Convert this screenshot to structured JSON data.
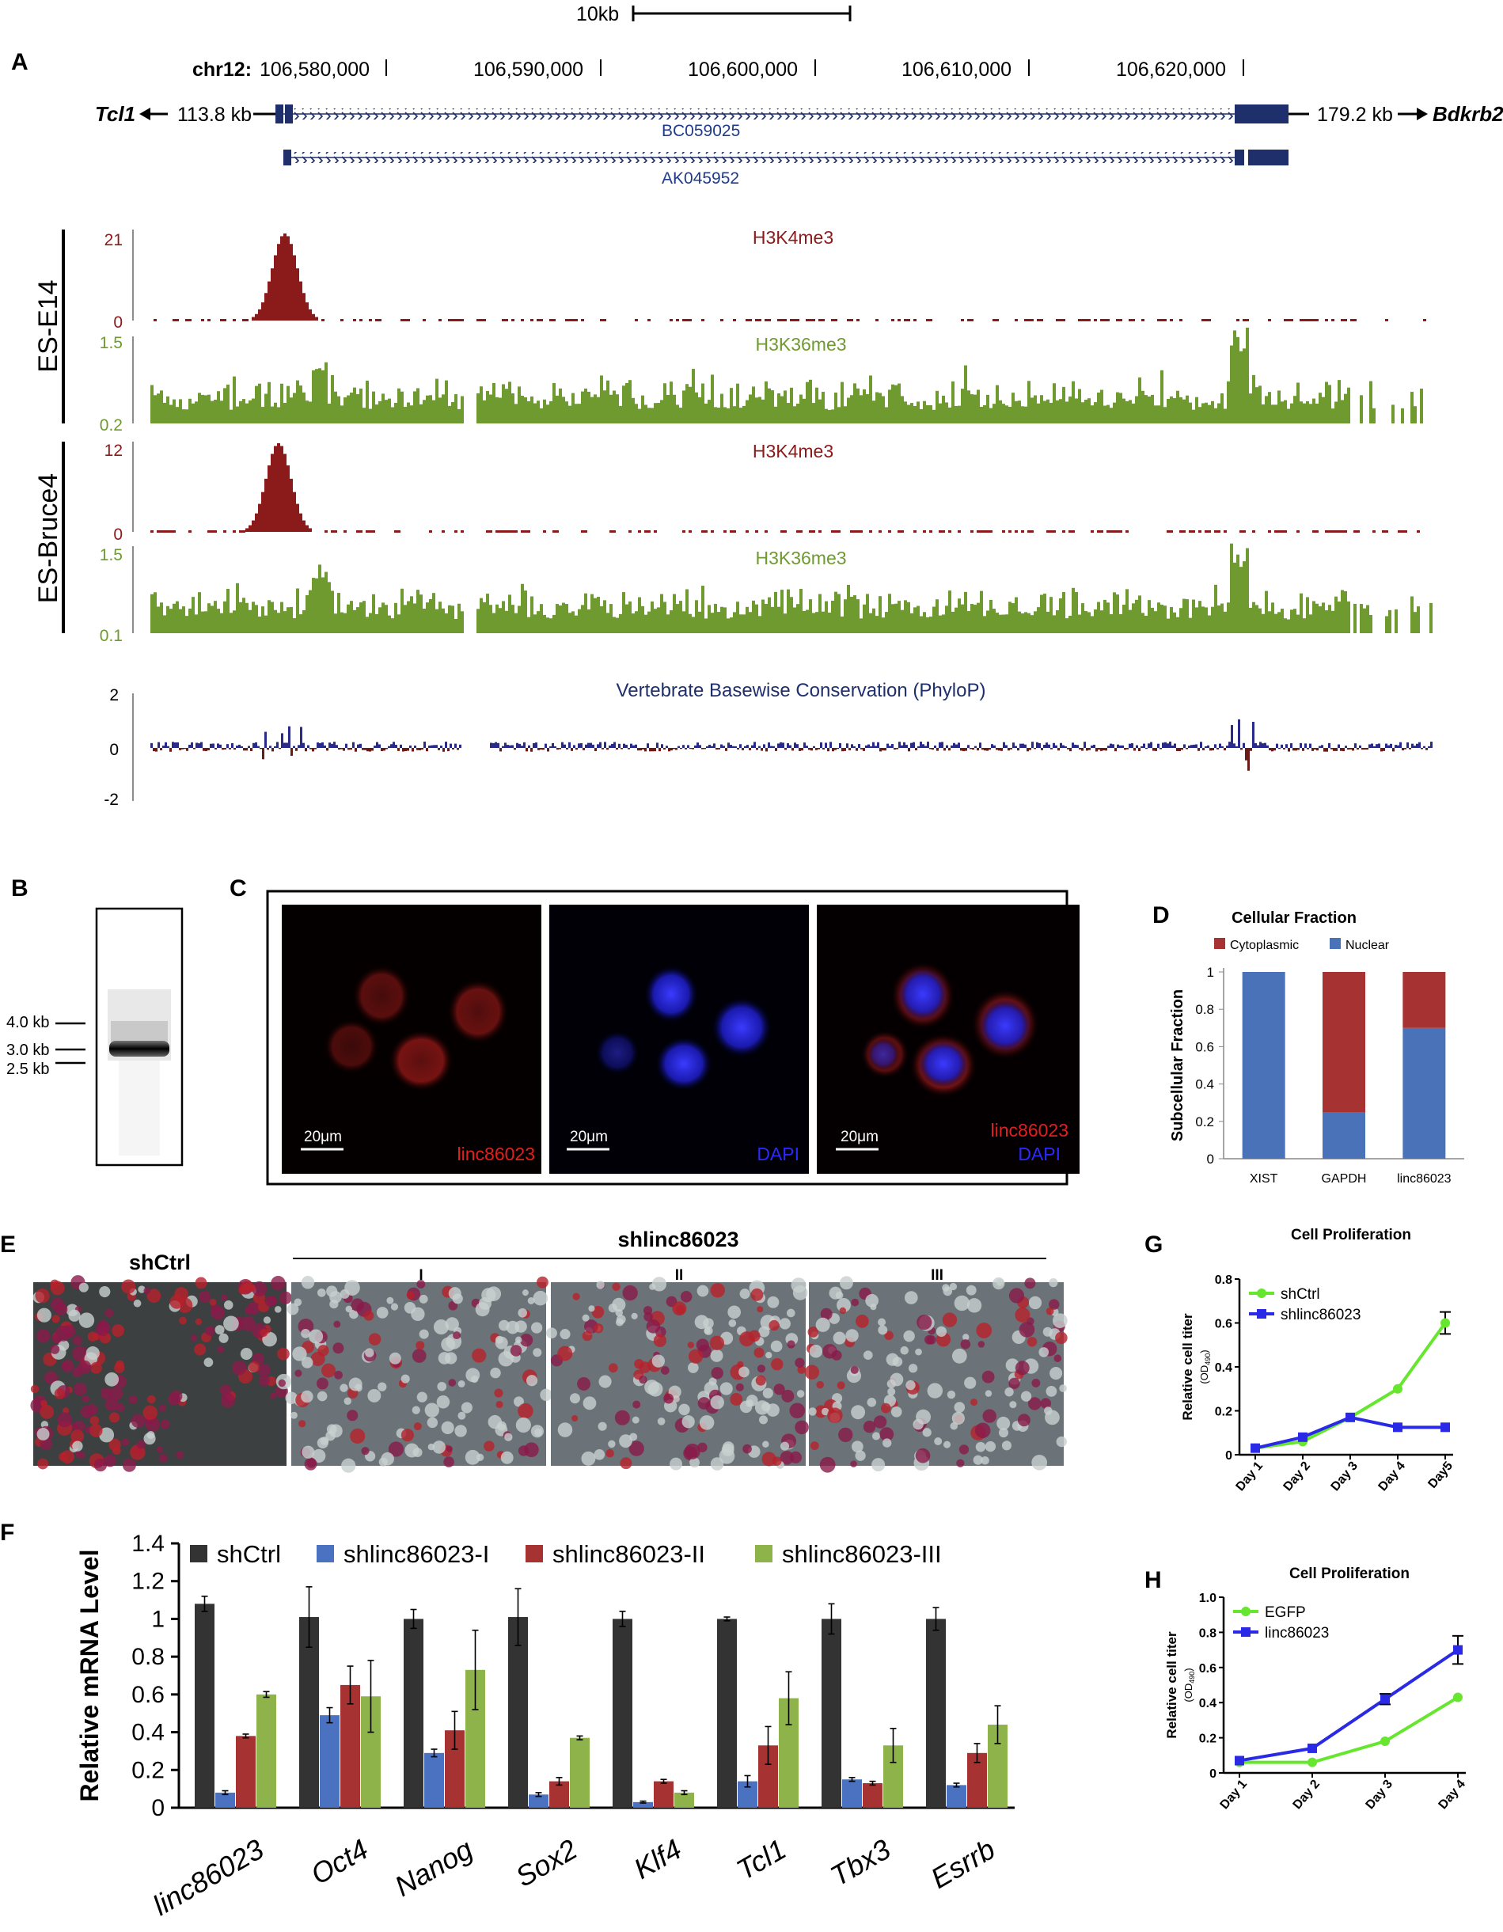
{
  "panels": {
    "A": "A",
    "B": "B",
    "C": "C",
    "D": "D",
    "E": "E",
    "F": "F",
    "G": "G",
    "H": "H"
  },
  "panelA": {
    "scale_label": "10kb",
    "chrom": "chr12:",
    "positions": [
      "106,580,000",
      "106,590,000",
      "106,600,000",
      "106,610,000",
      "106,620,000"
    ],
    "left_gene": "Tcl1",
    "left_dist": "113.8 kb",
    "right_gene": "Bdkrb2",
    "right_dist": "179.2 kb",
    "transcripts": [
      "BC059025",
      "AK045952"
    ],
    "cell_lines": [
      "ES-E14",
      "ES-Bruce4"
    ],
    "tracks": [
      {
        "name": "H3K4me3",
        "ymax": "21",
        "ymin": "0",
        "color": "#8b1a1a"
      },
      {
        "name": "H3K36me3",
        "ymax": "1.5",
        "ymin": "0.2",
        "color": "#6f9a2f"
      },
      {
        "name": "H3K4me3",
        "ymax": "12",
        "ymin": "0",
        "color": "#8b1a1a"
      },
      {
        "name": "H3K36me3",
        "ymax": "1.5",
        "ymin": "0.1",
        "color": "#6f9a2f"
      }
    ],
    "conservation": {
      "name": "Vertebrate Basewise Conservation (PhyloP)",
      "ticks": [
        "2",
        "0",
        "-2"
      ]
    }
  },
  "panelB": {
    "markers": [
      "4.0 kb",
      "3.0 kb",
      "2.5 kb"
    ]
  },
  "panelC": {
    "images": [
      {
        "scale": "20μm",
        "labels": [
          "linc86023"
        ],
        "label_colors": [
          "#e0201e"
        ]
      },
      {
        "scale": "20μm",
        "labels": [
          "DAPI"
        ],
        "label_colors": [
          "#2a2aff"
        ]
      },
      {
        "scale": "20μm",
        "labels": [
          "linc86023",
          "DAPI"
        ],
        "label_colors": [
          "#e0201e",
          "#2a2aff"
        ]
      }
    ]
  },
  "panelE": {
    "ctrl_label": "shCtrl",
    "kd_label": "shlinc86023",
    "sub_labels": [
      "I",
      "II",
      "III"
    ]
  },
  "chart_data": [
    {
      "panel": "D",
      "type": "bar",
      "stacked": true,
      "title": "Cellular Fraction",
      "ylabel": "Subcellular Fraction",
      "categories": [
        "XIST",
        "GAPDH",
        "linc86023"
      ],
      "series": [
        {
          "name": "Nuclear",
          "values": [
            1.0,
            0.25,
            0.7
          ],
          "color": "#4a72b8"
        },
        {
          "name": "Cytoplasmic",
          "values": [
            0.0,
            0.75,
            0.3
          ],
          "color": "#a63232"
        }
      ],
      "ylim": [
        0,
        1
      ],
      "yticks": [
        "0",
        "0.2",
        "0.4",
        "0.6",
        "0.8",
        "1"
      ],
      "legend": "top"
    },
    {
      "panel": "F",
      "type": "bar",
      "ylabel": "Relative mRNA Level",
      "categories": [
        "linc86023",
        "Oct4",
        "Nanog",
        "Sox2",
        "Klf4",
        "Tcl1",
        "Tbx3",
        "Esrrb"
      ],
      "series": [
        {
          "name": "shCtrl",
          "color": "#333333",
          "values": [
            1.08,
            1.01,
            1.0,
            1.01,
            1.0,
            1.0,
            1.0,
            1.0
          ],
          "errors": [
            0.04,
            0.16,
            0.05,
            0.15,
            0.04,
            0.01,
            0.08,
            0.06
          ]
        },
        {
          "name": "shlinc86023-I",
          "color": "#4a72c0",
          "values": [
            0.08,
            0.49,
            0.29,
            0.07,
            0.03,
            0.14,
            0.15,
            0.12
          ],
          "errors": [
            0.01,
            0.04,
            0.02,
            0.01,
            0.005,
            0.03,
            0.01,
            0.01
          ]
        },
        {
          "name": "shlinc86023-II",
          "color": "#a63232",
          "values": [
            0.38,
            0.65,
            0.41,
            0.14,
            0.14,
            0.33,
            0.13,
            0.29
          ],
          "errors": [
            0.01,
            0.1,
            0.1,
            0.02,
            0.01,
            0.1,
            0.01,
            0.05
          ]
        },
        {
          "name": "shlinc86023-III",
          "color": "#8db34a",
          "values": [
            0.6,
            0.59,
            0.73,
            0.37,
            0.08,
            0.58,
            0.33,
            0.44
          ],
          "errors": [
            0.015,
            0.19,
            0.21,
            0.01,
            0.01,
            0.14,
            0.09,
            0.1
          ]
        }
      ],
      "ylim": [
        0,
        1.4
      ],
      "yticks": [
        "0",
        "0.2",
        "0.4",
        "0.6",
        "0.8",
        "1",
        "1.2",
        "1.4"
      ],
      "legend": "top"
    },
    {
      "panel": "G",
      "type": "line",
      "title": "Cell Proliferation",
      "ylabel": "Relative cell titer",
      "ylabel_sub": "(OD",
      "ylabel_sub2": "490",
      "ylabel_sub3": ")",
      "categories": [
        "Day 1",
        "Day 2",
        "Day 3",
        "Day 4",
        "Day5"
      ],
      "series": [
        {
          "name": "shCtrl",
          "color": "#66e62e",
          "values": [
            0.03,
            0.06,
            0.17,
            0.3,
            0.6
          ],
          "errors": [
            0,
            0,
            0,
            0,
            0.05
          ]
        },
        {
          "name": "shlinc86023",
          "color": "#2a2ae6",
          "values": [
            0.03,
            0.08,
            0.17,
            0.125,
            0.125
          ],
          "errors": [
            0,
            0,
            0,
            0,
            0
          ]
        }
      ],
      "ylim": [
        0,
        0.8
      ],
      "yticks": [
        "0",
        "0.2",
        "0.4",
        "0.6",
        "0.8"
      ],
      "legend": "top-left"
    },
    {
      "panel": "H",
      "type": "line",
      "title": "Cell Proliferation",
      "ylabel": "Relative cell titer",
      "ylabel_sub": "(OD",
      "ylabel_sub2": "490",
      "ylabel_sub3": ")",
      "categories": [
        "Day 1",
        "Day 2",
        "Day 3",
        "Day 4"
      ],
      "series": [
        {
          "name": "EGFP",
          "color": "#66e62e",
          "values": [
            0.06,
            0.06,
            0.18,
            0.43
          ],
          "errors": [
            0,
            0,
            0,
            0
          ]
        },
        {
          "name": "linc86023",
          "color": "#2a2ae6",
          "values": [
            0.07,
            0.14,
            0.42,
            0.7
          ],
          "errors": [
            0,
            0,
            0.03,
            0.08
          ]
        }
      ],
      "ylim": [
        0,
        1.0
      ],
      "yticks": [
        "0",
        "0.2",
        "0.4",
        "0.6",
        "0.8",
        "1.0"
      ],
      "legend": "top-left"
    }
  ]
}
